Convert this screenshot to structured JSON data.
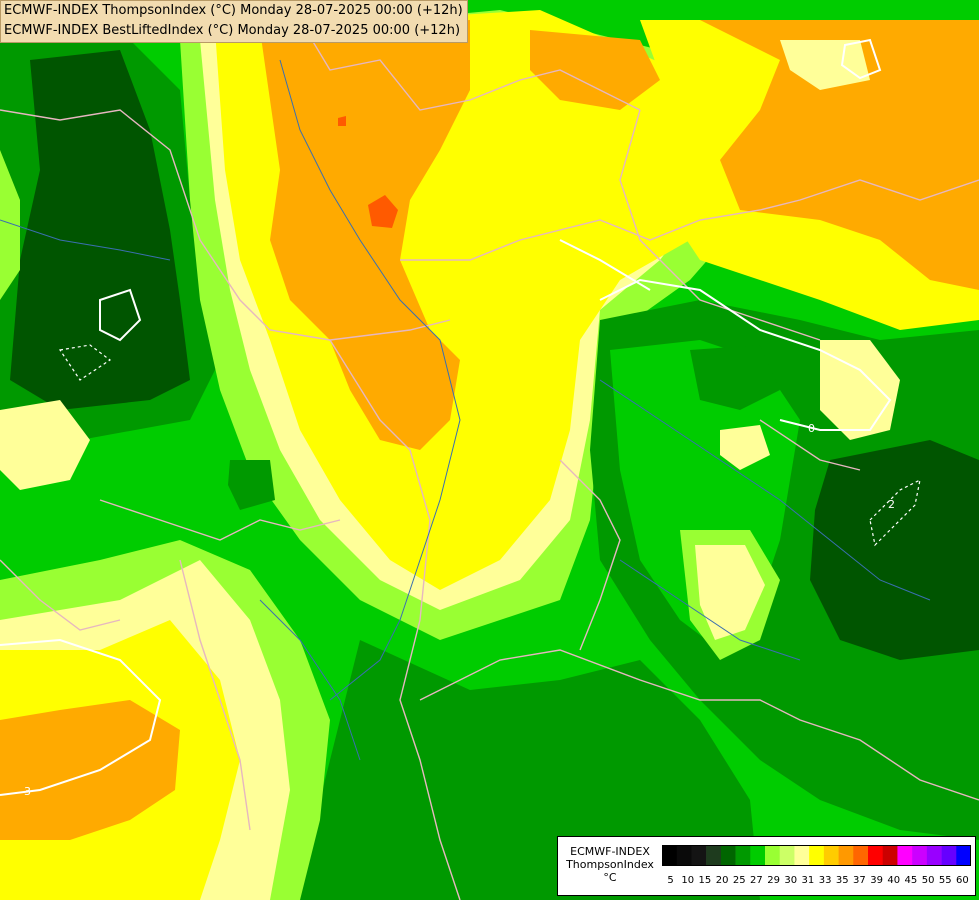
{
  "header": {
    "line1": "ECMWF-INDEX ThompsonIndex (°C) Monday 28-07-2025 00:00 (+12h)",
    "line2": "ECMWF-INDEX BestLiftedIndex (°C) Monday 28-07-2025 00:00 (+12h)"
  },
  "legend": {
    "title_line1": "ECMWF-INDEX",
    "title_line2": "ThompsonIndex",
    "unit": "°C",
    "ticks": [
      "5",
      "10",
      "15",
      "20",
      "25",
      "27",
      "29",
      "30",
      "31",
      "33",
      "35",
      "37",
      "39",
      "40",
      "45",
      "50",
      "55",
      "60"
    ],
    "colors": [
      "#000000",
      "#0a0a0a",
      "#141414",
      "#1e3b1e",
      "#006600",
      "#009900",
      "#00cc00",
      "#99ff33",
      "#ccff66",
      "#ffff99",
      "#ffff00",
      "#ffcc00",
      "#ff9900",
      "#ff6600",
      "#ff0000",
      "#cc0000",
      "#ff00ff",
      "#cc00ff",
      "#9900ff",
      "#6600ff",
      "#0000ff"
    ]
  },
  "map": {
    "contour_labels": [
      "2",
      "3",
      "0"
    ],
    "colors": {
      "dark_green": "#005500",
      "green": "#009900",
      "bright_green": "#00cc00",
      "lime": "#99ff33",
      "pale_yellow": "#ffff99",
      "yellow": "#ffff00",
      "orange": "#ffaa00",
      "red_orange": "#ff5a00"
    }
  }
}
